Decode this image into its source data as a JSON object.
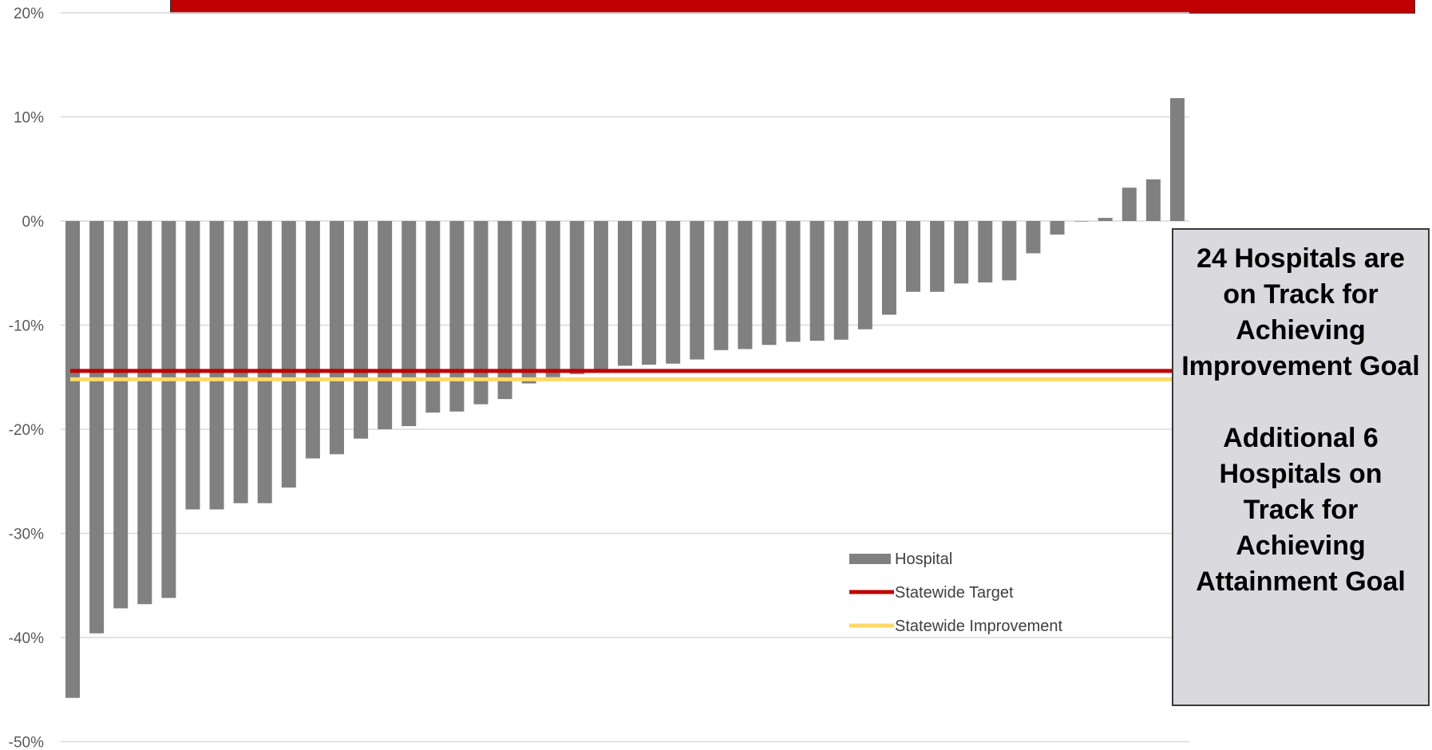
{
  "chart_data": {
    "type": "bar",
    "title": "",
    "xlabel": "",
    "ylabel": "",
    "ylim": [
      -0.5,
      0.2
    ],
    "y_ticks": [
      0.2,
      0.1,
      0,
      -0.1,
      -0.2,
      -0.3,
      -0.4,
      -0.5
    ],
    "y_tick_labels": [
      "20%",
      "10%",
      "0%",
      "-10%",
      "-20%",
      "-30%",
      "-40%",
      "-50%"
    ],
    "grid": true,
    "legend_position": "lower-center-right",
    "series": [
      {
        "name": "Hospital",
        "type": "bar",
        "color": "#808080",
        "values": [
          -0.458,
          -0.396,
          -0.372,
          -0.368,
          -0.362,
          -0.277,
          -0.277,
          -0.271,
          -0.271,
          -0.256,
          -0.228,
          -0.224,
          -0.209,
          -0.2,
          -0.197,
          -0.184,
          -0.183,
          -0.176,
          -0.171,
          -0.156,
          -0.15,
          -0.147,
          -0.143,
          -0.139,
          -0.138,
          -0.137,
          -0.133,
          -0.124,
          -0.123,
          -0.119,
          -0.116,
          -0.115,
          -0.114,
          -0.104,
          -0.09,
          -0.068,
          -0.068,
          -0.06,
          -0.059,
          -0.057,
          -0.031,
          -0.013,
          0.0,
          0.003,
          0.032,
          0.04,
          0.118
        ]
      },
      {
        "name": "Statewide Target",
        "type": "line",
        "color": "#c00000",
        "value": -0.144
      },
      {
        "name": "Statewide Improvement",
        "type": "line",
        "color": "#ffd966",
        "value": -0.152
      }
    ]
  },
  "info_box": {
    "line1": "24 Hospitals are on Track for Achieving Improvement Goal",
    "line2": "Additional 6 Hospitals on Track for Achieving Attainment Goal"
  },
  "colors": {
    "banner": "#c00000",
    "info_box_bg": "#d9d9de"
  }
}
